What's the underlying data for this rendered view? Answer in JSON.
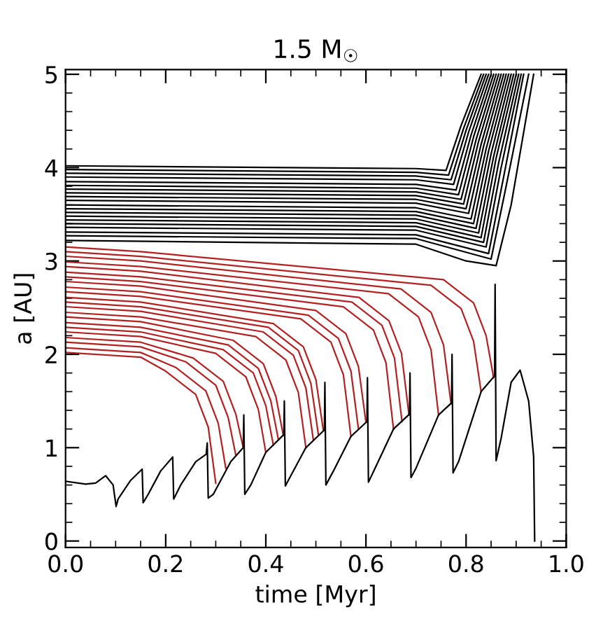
{
  "chart_data": {
    "type": "line",
    "title": "1.5 M$_{☉}$",
    "xlabel": "time [Myr]",
    "ylabel": "a [AU]",
    "xlim": [
      0,
      1
    ],
    "ylim": [
      -0.07,
      5.05
    ],
    "xticks": [
      {
        "value": 0,
        "label": "0.0"
      },
      {
        "value": 0.2,
        "label": "0.2"
      },
      {
        "value": 0.4,
        "label": "0.4"
      },
      {
        "value": 0.6,
        "label": "0.6"
      },
      {
        "value": 0.8,
        "label": "0.8"
      },
      {
        "value": 1,
        "label": "1.0"
      }
    ],
    "yticks": [
      0,
      1,
      2,
      3,
      4,
      5
    ],
    "grid": false,
    "marker": "none",
    "line_style": "solid",
    "series": [
      {
        "color": "#000000",
        "x": [
          0,
          0.7,
          0.76,
          0.79,
          0.83
        ],
        "values": [
          4.02,
          3.99,
          3.97,
          4.45,
          5.0
        ]
      },
      {
        "color": "#000000",
        "x": [
          0,
          0.7,
          0.765,
          0.795,
          0.835
        ],
        "values": [
          3.98,
          3.95,
          3.92,
          4.42,
          5.0
        ]
      },
      {
        "color": "#000000",
        "x": [
          0,
          0.7,
          0.77,
          0.8,
          0.84
        ],
        "values": [
          3.94,
          3.91,
          3.87,
          4.4,
          5.0
        ]
      },
      {
        "color": "#000000",
        "x": [
          0,
          0.7,
          0.775,
          0.805,
          0.845
        ],
        "values": [
          3.9,
          3.87,
          3.82,
          4.38,
          5.0
        ]
      },
      {
        "color": "#000000",
        "x": [
          0,
          0.7,
          0.78,
          0.81,
          0.85
        ],
        "values": [
          3.85,
          3.82,
          3.76,
          4.35,
          5.0
        ]
      },
      {
        "color": "#000000",
        "x": [
          0,
          0.7,
          0.785,
          0.815,
          0.855
        ],
        "values": [
          3.81,
          3.78,
          3.71,
          4.33,
          5.0
        ]
      },
      {
        "color": "#000000",
        "x": [
          0,
          0.7,
          0.79,
          0.82,
          0.86
        ],
        "values": [
          3.77,
          3.74,
          3.66,
          4.3,
          5.0
        ]
      },
      {
        "color": "#000000",
        "x": [
          0,
          0.7,
          0.795,
          0.825,
          0.865
        ],
        "values": [
          3.73,
          3.7,
          3.61,
          4.28,
          5.0
        ]
      },
      {
        "color": "#000000",
        "x": [
          0,
          0.7,
          0.8,
          0.83,
          0.87
        ],
        "values": [
          3.69,
          3.66,
          3.56,
          4.25,
          5.0
        ]
      },
      {
        "color": "#000000",
        "x": [
          0,
          0.7,
          0.805,
          0.835,
          0.875
        ],
        "values": [
          3.65,
          3.62,
          3.51,
          4.23,
          5.0
        ]
      },
      {
        "color": "#000000",
        "x": [
          0,
          0.7,
          0.81,
          0.84,
          0.88
        ],
        "values": [
          3.6,
          3.57,
          3.45,
          4.2,
          5.0
        ]
      },
      {
        "color": "#000000",
        "x": [
          0,
          0.7,
          0.815,
          0.845,
          0.885
        ],
        "values": [
          3.56,
          3.53,
          3.4,
          4.18,
          5.0
        ]
      },
      {
        "color": "#000000",
        "x": [
          0,
          0.7,
          0.82,
          0.85,
          0.89
        ],
        "values": [
          3.52,
          3.49,
          3.35,
          4.15,
          5.0
        ]
      },
      {
        "color": "#000000",
        "x": [
          0,
          0.7,
          0.825,
          0.855,
          0.895
        ],
        "values": [
          3.48,
          3.45,
          3.3,
          4.12,
          5.0
        ]
      },
      {
        "color": "#000000",
        "x": [
          0,
          0.7,
          0.83,
          0.86,
          0.9
        ],
        "values": [
          3.44,
          3.41,
          3.25,
          4.1,
          5.0
        ]
      },
      {
        "color": "#000000",
        "x": [
          0,
          0.7,
          0.835,
          0.865,
          0.905
        ],
        "values": [
          3.4,
          3.37,
          3.2,
          4.05,
          5.0
        ]
      },
      {
        "color": "#000000",
        "x": [
          0,
          0.7,
          0.84,
          0.87,
          0.91
        ],
        "values": [
          3.36,
          3.33,
          3.15,
          4.0,
          5.0
        ]
      },
      {
        "color": "#000000",
        "x": [
          0,
          0.7,
          0.845,
          0.875,
          0.915
        ],
        "values": [
          3.31,
          3.28,
          3.08,
          3.9,
          5.0
        ]
      },
      {
        "color": "#000000",
        "x": [
          0,
          0.7,
          0.85,
          0.88,
          0.925
        ],
        "values": [
          3.27,
          3.24,
          3.02,
          3.8,
          5.0
        ]
      },
      {
        "color": "#000000",
        "x": [
          0,
          0.7,
          0.8,
          0.86,
          0.89,
          0.935
        ],
        "values": [
          3.22,
          3.18,
          3.0,
          2.95,
          3.6,
          5.0
        ]
      },
      {
        "color": "#b22222",
        "x": [
          0,
          0.15,
          0.2,
          0.26,
          0.285,
          0.3
        ],
        "values": [
          2.02,
          1.97,
          1.82,
          1.57,
          1.22,
          0.62
        ]
      },
      {
        "color": "#b22222",
        "x": [
          0,
          0.15,
          0.22,
          0.28,
          0.305,
          0.32
        ],
        "values": [
          2.07,
          2.02,
          1.86,
          1.61,
          1.26,
          0.78
        ]
      },
      {
        "color": "#b22222",
        "x": [
          0,
          0.15,
          0.24,
          0.3,
          0.325,
          0.34
        ],
        "values": [
          2.13,
          2.08,
          1.92,
          1.67,
          1.32,
          0.92
        ]
      },
      {
        "color": "#b22222",
        "x": [
          0,
          0.15,
          0.255,
          0.315,
          0.34,
          0.355
        ],
        "values": [
          2.18,
          2.13,
          1.96,
          1.71,
          1.36,
          1.0
        ]
      },
      {
        "color": "#b22222",
        "x": [
          0,
          0.15,
          0.3,
          0.36,
          0.385,
          0.4
        ],
        "values": [
          2.24,
          2.19,
          2.01,
          1.76,
          1.41,
          0.95
        ]
      },
      {
        "color": "#b22222",
        "x": [
          0,
          0.15,
          0.315,
          0.375,
          0.4,
          0.415
        ],
        "values": [
          2.29,
          2.24,
          2.05,
          1.8,
          1.45,
          1.03
        ]
      },
      {
        "color": "#b22222",
        "x": [
          0,
          0.15,
          0.325,
          0.385,
          0.41,
          0.425
        ],
        "values": [
          2.34,
          2.29,
          2.1,
          1.85,
          1.5,
          1.09
        ]
      },
      {
        "color": "#b22222",
        "x": [
          0,
          0.15,
          0.335,
          0.395,
          0.42,
          0.435
        ],
        "values": [
          2.4,
          2.35,
          2.15,
          1.9,
          1.55,
          1.13
        ]
      },
      {
        "color": "#b22222",
        "x": [
          0,
          0.15,
          0.38,
          0.44,
          0.465,
          0.48
        ],
        "values": [
          2.45,
          2.4,
          2.19,
          1.94,
          1.59,
          1.0
        ]
      },
      {
        "color": "#b22222",
        "x": [
          0,
          0.15,
          0.395,
          0.455,
          0.48,
          0.495
        ],
        "values": [
          2.51,
          2.46,
          2.24,
          1.99,
          1.64,
          1.08
        ]
      },
      {
        "color": "#b22222",
        "x": [
          0,
          0.15,
          0.405,
          0.465,
          0.49,
          0.505
        ],
        "values": [
          2.56,
          2.51,
          2.29,
          2.04,
          1.69,
          1.14
        ]
      },
      {
        "color": "#b22222",
        "x": [
          0,
          0.15,
          0.415,
          0.475,
          0.5,
          0.515
        ],
        "values": [
          2.61,
          2.56,
          2.33,
          2.08,
          1.73,
          1.18
        ]
      },
      {
        "color": "#b22222",
        "x": [
          0,
          0.15,
          0.47,
          0.53,
          0.555,
          0.57
        ],
        "values": [
          2.67,
          2.62,
          2.38,
          2.13,
          1.78,
          1.12
        ]
      },
      {
        "color": "#b22222",
        "x": [
          0,
          0.15,
          0.485,
          0.545,
          0.57,
          0.585
        ],
        "values": [
          2.72,
          2.67,
          2.42,
          2.17,
          1.82,
          1.2
        ]
      },
      {
        "color": "#b22222",
        "x": [
          0,
          0.15,
          0.5,
          0.56,
          0.585,
          0.6
        ],
        "values": [
          2.78,
          2.73,
          2.47,
          2.22,
          1.87,
          1.27
        ]
      },
      {
        "color": "#b22222",
        "x": [
          0,
          0.15,
          0.555,
          0.615,
          0.64,
          0.655
        ],
        "values": [
          2.83,
          2.78,
          2.51,
          2.26,
          1.91,
          1.2
        ]
      },
      {
        "color": "#b22222",
        "x": [
          0,
          0.15,
          0.572,
          0.632,
          0.657,
          0.672
        ],
        "values": [
          2.88,
          2.83,
          2.56,
          2.31,
          1.96,
          1.28
        ]
      },
      {
        "color": "#b22222",
        "x": [
          0,
          0.15,
          0.586,
          0.646,
          0.671,
          0.686
        ],
        "values": [
          2.94,
          2.89,
          2.61,
          2.36,
          2.01,
          1.35
        ]
      },
      {
        "color": "#b22222",
        "x": [
          0,
          0.15,
          0.645,
          0.705,
          0.73,
          0.745
        ],
        "values": [
          2.99,
          2.94,
          2.65,
          2.4,
          2.05,
          1.35
        ]
      },
      {
        "color": "#b22222",
        "x": [
          0,
          0.15,
          0.67,
          0.73,
          0.755,
          0.77
        ],
        "values": [
          3.05,
          3.0,
          2.7,
          2.45,
          2.1,
          1.47
        ]
      },
      {
        "color": "#b22222",
        "x": [
          0,
          0.15,
          0.73,
          0.79,
          0.815,
          0.83
        ],
        "values": [
          3.1,
          3.05,
          2.74,
          2.49,
          2.14,
          1.6
        ]
      },
      {
        "color": "#b22222",
        "x": [
          0,
          0.15,
          0.755,
          0.815,
          0.84,
          0.855
        ],
        "values": [
          3.15,
          3.1,
          2.8,
          2.55,
          2.2,
          1.75
        ]
      },
      {
        "color": "#000000",
        "x": [
          0,
          0.04,
          0.06,
          0.08,
          0.095,
          0.101,
          0.105,
          0.13,
          0.153,
          0.155,
          0.165,
          0.19,
          0.214,
          0.216,
          0.23,
          0.26,
          0.281,
          0.283,
          0.285,
          0.295,
          0.33,
          0.355,
          0.356,
          0.358,
          0.37,
          0.4,
          0.436,
          0.437,
          0.439,
          0.45,
          0.48,
          0.517,
          0.518,
          0.52,
          0.535,
          0.57,
          0.602,
          0.603,
          0.605,
          0.62,
          0.655,
          0.687,
          0.688,
          0.69,
          0.7,
          0.745,
          0.771,
          0.772,
          0.774,
          0.785,
          0.83,
          0.857,
          0.858,
          0.86,
          0.87,
          0.89,
          0.908,
          0.925,
          0.935,
          0.937
        ],
        "values": [
          0.64,
          0.61,
          0.62,
          0.7,
          0.6,
          0.37,
          0.45,
          0.65,
          0.77,
          0.41,
          0.5,
          0.75,
          0.9,
          0.45,
          0.6,
          0.85,
          0.93,
          1.05,
          0.46,
          0.5,
          0.85,
          1.0,
          1.35,
          0.5,
          0.6,
          0.95,
          1.14,
          1.5,
          0.59,
          0.7,
          1.0,
          1.19,
          1.7,
          0.6,
          0.75,
          1.12,
          1.28,
          1.75,
          0.63,
          0.8,
          1.2,
          1.36,
          1.8,
          0.68,
          0.78,
          1.35,
          1.48,
          2.0,
          0.73,
          0.85,
          1.6,
          1.77,
          2.75,
          0.86,
          1.1,
          1.7,
          1.83,
          1.5,
          0.9,
          0.0
        ]
      }
    ]
  }
}
